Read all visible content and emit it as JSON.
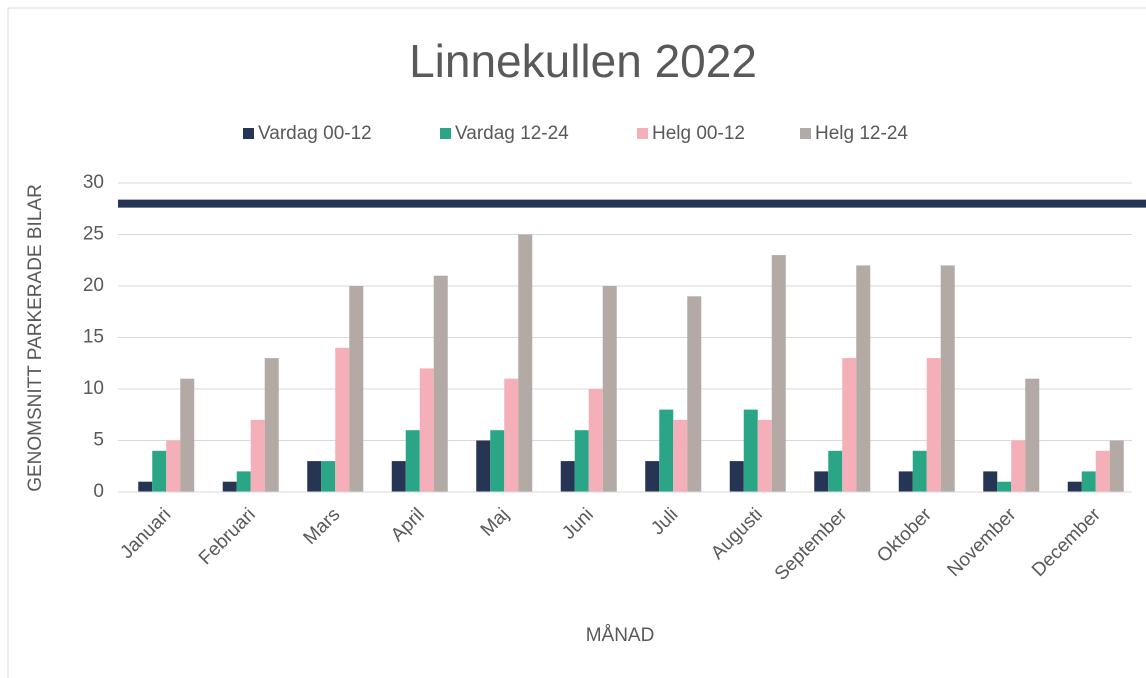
{
  "chart_data": {
    "type": "bar",
    "title": "Linnekullen 2022",
    "x_label": "MÅNAD",
    "y_label": "GENOMSNITT PARKERADE BILAR",
    "categories": [
      "Januari",
      "Februari",
      "Mars",
      "April",
      "Maj",
      "Juni",
      "Juli",
      "Augusti",
      "September",
      "Oktober",
      "November",
      "December"
    ],
    "series": [
      {
        "name": "Vardag 00-12",
        "color": "#263554",
        "values": [
          1,
          1,
          3,
          3,
          5,
          3,
          3,
          3,
          2,
          2,
          2,
          1
        ]
      },
      {
        "name": "Vardag 12-24",
        "color": "#2aa687",
        "values": [
          4,
          2,
          3,
          6,
          6,
          6,
          8,
          8,
          4,
          4,
          1,
          2
        ]
      },
      {
        "name": "Helg 00-12",
        "color": "#f4afb8",
        "values": [
          5,
          7,
          14,
          12,
          11,
          10,
          7,
          7,
          13,
          13,
          5,
          4
        ]
      },
      {
        "name": "Helg 12-24",
        "color": "#b3aaa6",
        "values": [
          11,
          13,
          20,
          21,
          25,
          20,
          19,
          23,
          22,
          22,
          11,
          5
        ]
      }
    ],
    "reference_line": {
      "value": 28,
      "color": "#263554"
    },
    "ylim": [
      0,
      30
    ],
    "yticks": [
      0,
      5,
      10,
      15,
      20,
      25,
      30
    ],
    "grid": true,
    "legend": "top"
  }
}
